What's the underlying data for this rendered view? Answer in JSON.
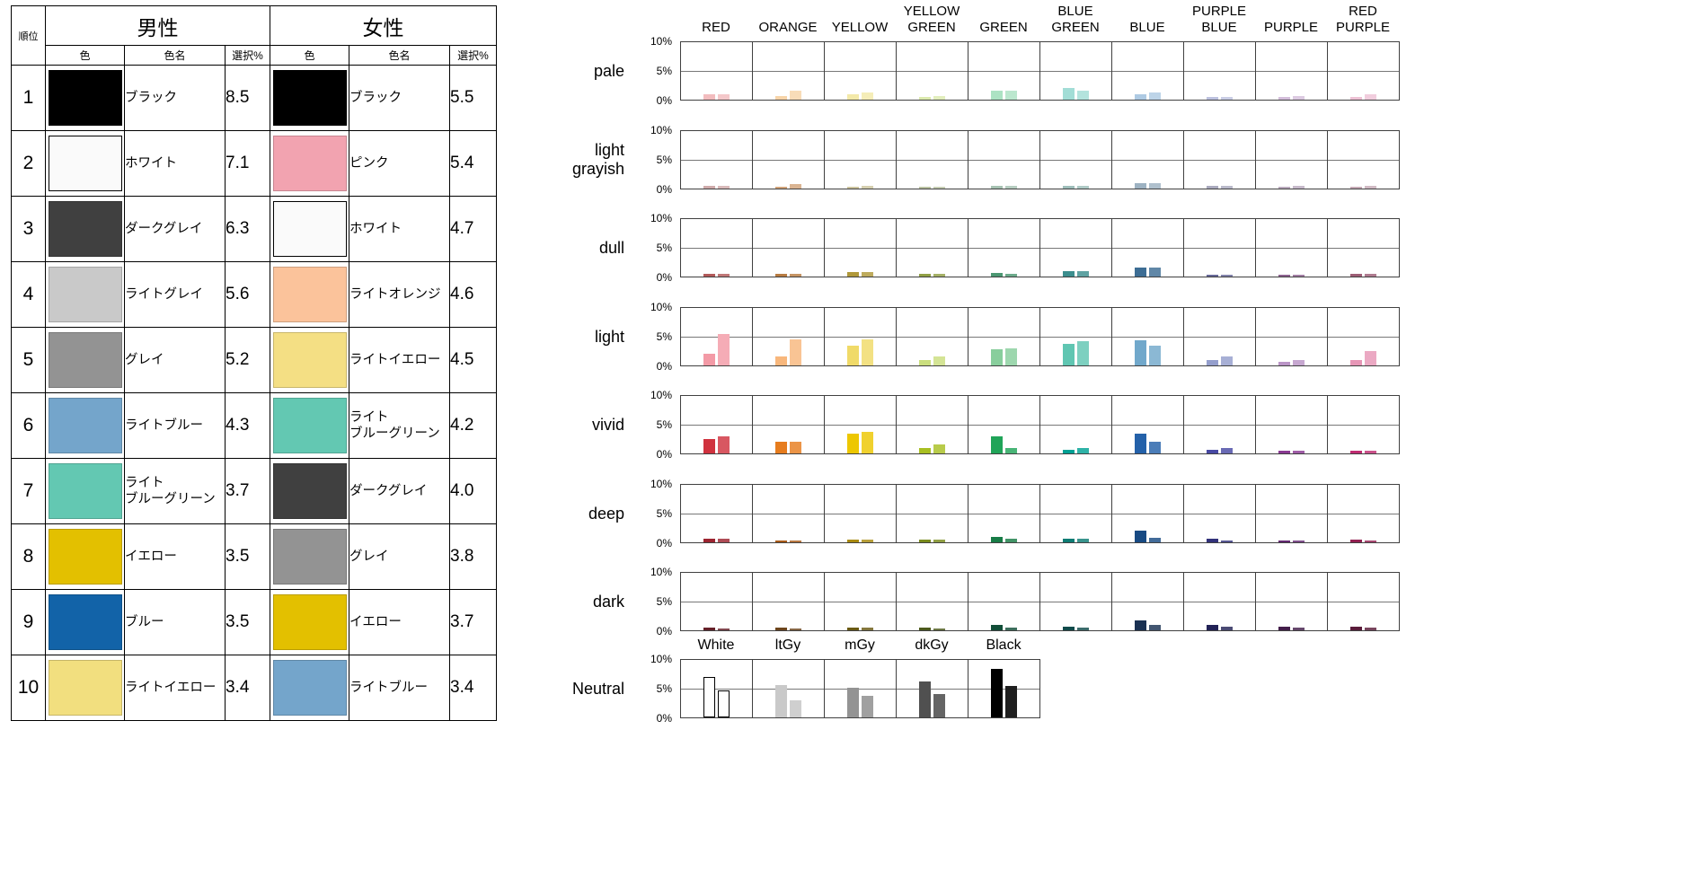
{
  "page": {
    "background": "#FFFFFF"
  },
  "table": {
    "header": {
      "rank": "順位",
      "male": "男性",
      "female": "女性",
      "color": "色",
      "color_name": "色名",
      "percent": "選択%"
    },
    "rows": [
      {
        "rank": "1",
        "male": {
          "color": "#000000",
          "name": "ブラック",
          "pct": "8.5"
        },
        "female": {
          "color": "#000000",
          "name": "ブラック",
          "pct": "5.5"
        }
      },
      {
        "rank": "2",
        "male": {
          "color": "#FAFAFA",
          "name": "ホワイト",
          "pct": "7.1",
          "outline": true
        },
        "female": {
          "color": "#F2A3B0",
          "name": "ピンク",
          "pct": "5.4"
        }
      },
      {
        "rank": "3",
        "male": {
          "color": "#404040",
          "name": "ダークグレイ",
          "pct": "6.3"
        },
        "female": {
          "color": "#FAFAFA",
          "name": "ホワイト",
          "pct": "4.7",
          "outline": true
        }
      },
      {
        "rank": "4",
        "male": {
          "color": "#C9C9C9",
          "name": "ライトグレイ",
          "pct": "5.6"
        },
        "female": {
          "color": "#FBC39B",
          "name": "ライトオレンジ",
          "pct": "4.6"
        }
      },
      {
        "rank": "5",
        "male": {
          "color": "#939393",
          "name": "グレイ",
          "pct": "5.2"
        },
        "female": {
          "color": "#F4DF84",
          "name": "ライトイエロー",
          "pct": "4.5"
        }
      },
      {
        "rank": "6",
        "male": {
          "color": "#74A5CB",
          "name": "ライトブルー",
          "pct": "4.3"
        },
        "female": {
          "color": "#63C8B2",
          "name": "ライト\nブルーグリーン",
          "pct": "4.2"
        }
      },
      {
        "rank": "7",
        "male": {
          "color": "#63C8B2",
          "name": "ライト\nブルーグリーン",
          "pct": "3.7"
        },
        "female": {
          "color": "#404040",
          "name": "ダークグレイ",
          "pct": "4.0"
        }
      },
      {
        "rank": "8",
        "male": {
          "color": "#E3C000",
          "name": "イエロー",
          "pct": "3.5"
        },
        "female": {
          "color": "#939393",
          "name": "グレイ",
          "pct": "3.8"
        }
      },
      {
        "rank": "9",
        "male": {
          "color": "#1263A8",
          "name": "ブルー",
          "pct": "3.5"
        },
        "female": {
          "color": "#E3C000",
          "name": "イエロー",
          "pct": "3.7"
        }
      },
      {
        "rank": "10",
        "male": {
          "color": "#F2DF7F",
          "name": "ライトイエロー",
          "pct": "3.4"
        },
        "female": {
          "color": "#74A5CB",
          "name": "ライトブルー",
          "pct": "3.4"
        }
      }
    ]
  },
  "chart_data": {
    "type": "bar",
    "layout": "grid of mini bar charts: tone rows x hue columns, two bars per cell (male, female); separate Neutral row",
    "ylim": [
      0,
      10
    ],
    "yticks": [
      "10%",
      "5%",
      "0%"
    ],
    "series": [
      "male",
      "female"
    ],
    "hues": [
      "RED",
      "ORANGE",
      "YELLOW",
      "YELLOW\nGREEN",
      "GREEN",
      "BLUE\nGREEN",
      "BLUE",
      "PURPLE\nBLUE",
      "PURPLE",
      "RED\nPURPLE"
    ],
    "tones": [
      {
        "label": "pale",
        "colors": [
          "#F2BCBE",
          "#F7D4A9",
          "#F3E9A9",
          "#DCEAAE",
          "#ACE2C3",
          "#A2DDD6",
          "#AECAE3",
          "#BDC2DF",
          "#D4BEDB",
          "#EEC2D5"
        ],
        "male": [
          1.0,
          0.6,
          1.0,
          0.5,
          1.5,
          2.0,
          1.0,
          0.4,
          0.4,
          0.5
        ],
        "female": [
          1.0,
          1.5,
          1.3,
          0.6,
          1.5,
          1.5,
          1.3,
          0.5,
          0.6,
          1.0
        ]
      },
      {
        "label": "light\ngrayish",
        "colors": [
          "#CFAAAA",
          "#D2A47A",
          "#CCC49E",
          "#BAC2A2",
          "#A6C2B2",
          "#9EBEBA",
          "#9DB2C2",
          "#AAAABE",
          "#BAAABE",
          "#C6AAB6"
        ],
        "male": [
          0.4,
          0.3,
          0.3,
          0.3,
          0.4,
          0.4,
          1.0,
          0.5,
          0.3,
          0.3
        ],
        "female": [
          0.5,
          0.8,
          0.4,
          0.3,
          0.4,
          0.4,
          1.0,
          0.4,
          0.4,
          0.4
        ]
      },
      {
        "label": "dull",
        "colors": [
          "#B25A5A",
          "#B87C42",
          "#B0983A",
          "#91A046",
          "#4C9772",
          "#3C8E8E",
          "#3D6D94",
          "#676898",
          "#8D6290",
          "#9E5E76"
        ],
        "male": [
          0.5,
          0.5,
          0.8,
          0.5,
          0.6,
          1.0,
          1.5,
          0.3,
          0.3,
          0.5
        ],
        "female": [
          0.4,
          0.5,
          0.8,
          0.5,
          0.5,
          1.0,
          1.5,
          0.3,
          0.3,
          0.4
        ]
      },
      {
        "label": "light",
        "colors": [
          "#F39AA6",
          "#F8B77C",
          "#F0DA68",
          "#CADE7E",
          "#88CE9C",
          "#60C6B2",
          "#71A8CB",
          "#949ECC",
          "#BA94C6",
          "#E696B6"
        ],
        "male": [
          2.0,
          1.5,
          3.4,
          1.0,
          2.8,
          3.7,
          4.3,
          1.0,
          0.6,
          1.0
        ],
        "female": [
          5.4,
          4.6,
          4.5,
          1.5,
          3.0,
          4.2,
          3.4,
          1.5,
          1.0,
          2.5
        ]
      },
      {
        "label": "vivid",
        "colors": [
          "#D0323E",
          "#E67C1E",
          "#EDC700",
          "#A8BF22",
          "#20A458",
          "#00A194",
          "#2461A9",
          "#4849A3",
          "#8A3A93",
          "#C02C72"
        ],
        "male": [
          2.5,
          2.0,
          3.5,
          1.0,
          3.0,
          0.6,
          3.5,
          0.6,
          0.5,
          0.5
        ],
        "female": [
          3.0,
          2.0,
          3.7,
          1.5,
          1.0,
          1.0,
          2.0,
          1.0,
          0.5,
          0.5
        ]
      },
      {
        "label": "deep",
        "colors": [
          "#9C2430",
          "#A85A18",
          "#A98A10",
          "#798A1C",
          "#187C46",
          "#0E7C74",
          "#184A83",
          "#32327A",
          "#632A72",
          "#922051"
        ],
        "male": [
          0.7,
          0.3,
          0.5,
          0.4,
          1.0,
          0.6,
          2.0,
          0.6,
          0.3,
          0.4
        ],
        "female": [
          0.6,
          0.3,
          0.5,
          0.4,
          0.6,
          0.6,
          0.8,
          0.3,
          0.3,
          0.3
        ]
      },
      {
        "label": "dark",
        "colors": [
          "#652028",
          "#6C441C",
          "#695912",
          "#4C591C",
          "#124E38",
          "#104A4A",
          "#1A3152",
          "#222256",
          "#431E4A",
          "#5A1C3A"
        ],
        "male": [
          0.4,
          0.4,
          0.5,
          0.4,
          1.0,
          0.6,
          1.7,
          1.0,
          0.7,
          0.7
        ],
        "female": [
          0.3,
          0.3,
          0.4,
          0.3,
          0.5,
          0.5,
          1.0,
          0.6,
          0.5,
          0.5
        ]
      }
    ],
    "neutral": {
      "label": "Neutral",
      "categories": [
        "White",
        "ltGy",
        "mGy",
        "dkGy",
        "Black"
      ],
      "colors": [
        "#FFFFFF",
        "#C9C9C9",
        "#939393",
        "#505050",
        "#000000"
      ],
      "male": [
        7.1,
        5.6,
        5.2,
        6.3,
        8.5
      ],
      "female": [
        4.7,
        3.0,
        3.8,
        4.0,
        5.5
      ]
    }
  }
}
